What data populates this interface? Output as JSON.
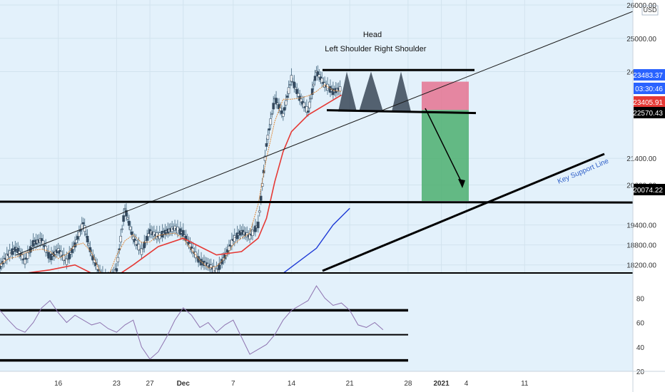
{
  "chart_data": {
    "type": "line",
    "title": "",
    "annotations": {
      "head": "Head",
      "left_shoulder": "Left Shoulder",
      "right_shoulder": "Right Shoulder",
      "support_label": "Key Support Line"
    },
    "y_axis": {
      "currency": "USD",
      "ticks": [
        "26000.00",
        "25000.00",
        "24000.00",
        "21400.00",
        "20600.00",
        "19400.00",
        "18800.00",
        "18200.00"
      ],
      "tick_values": [
        26000,
        25000,
        24000,
        21400,
        20600,
        19400,
        18800,
        18200
      ],
      "ylim": [
        17980,
        26150
      ]
    },
    "price_badges": [
      {
        "value": "23483.37",
        "color": "#2962ff"
      },
      {
        "value": "03:30:46",
        "color": "#2962ff"
      },
      {
        "value": "23405.91",
        "color": "#e53935"
      },
      {
        "value": "22570.43",
        "color": "#000000"
      },
      {
        "value": "20074.22",
        "color": "#000000"
      }
    ],
    "x_axis": {
      "labels": [
        "16",
        "23",
        "27",
        "Dec",
        "7",
        "14",
        "21",
        "28",
        "2021",
        "4",
        "11"
      ],
      "label_days": [
        16,
        23,
        27,
        31,
        37,
        44,
        51,
        58,
        62,
        65,
        72
      ],
      "xlim": [
        9,
        85
      ]
    },
    "rsi": {
      "ticks": [
        "80",
        "60",
        "40",
        "20"
      ],
      "tick_values": [
        80,
        60,
        40,
        20
      ],
      "ylim": [
        20,
        100
      ],
      "levels": [
        70,
        50,
        29
      ],
      "points": [
        [
          9,
          70
        ],
        [
          10,
          62
        ],
        [
          11,
          55
        ],
        [
          12,
          52
        ],
        [
          13,
          60
        ],
        [
          14,
          72
        ],
        [
          15,
          78
        ],
        [
          16,
          68
        ],
        [
          17,
          60
        ],
        [
          18,
          66
        ],
        [
          19,
          62
        ],
        [
          20,
          58
        ],
        [
          21,
          60
        ],
        [
          22,
          55
        ],
        [
          23,
          52
        ],
        [
          24,
          58
        ],
        [
          25,
          62
        ],
        [
          26,
          40
        ],
        [
          27,
          30
        ],
        [
          28,
          36
        ],
        [
          29,
          48
        ],
        [
          30,
          62
        ],
        [
          31,
          72
        ],
        [
          32,
          66
        ],
        [
          33,
          56
        ],
        [
          34,
          60
        ],
        [
          35,
          52
        ],
        [
          36,
          58
        ],
        [
          37,
          62
        ],
        [
          38,
          48
        ],
        [
          39,
          34
        ],
        [
          40,
          38
        ],
        [
          41,
          42
        ],
        [
          42,
          50
        ],
        [
          43,
          62
        ],
        [
          44,
          70
        ],
        [
          45,
          74
        ],
        [
          46,
          78
        ],
        [
          47,
          90
        ],
        [
          48,
          80
        ],
        [
          49,
          74
        ],
        [
          50,
          76
        ],
        [
          51,
          70
        ],
        [
          52,
          58
        ],
        [
          53,
          56
        ],
        [
          54,
          60
        ],
        [
          55,
          54
        ]
      ]
    },
    "series": [
      {
        "name": "",
        "color": "#6f8fa6",
        "points": [
          [
            9,
            18150
          ],
          [
            10,
            18500
          ],
          [
            11,
            18700
          ],
          [
            12,
            18300
          ],
          [
            13,
            18850
          ],
          [
            14,
            18950
          ],
          [
            15,
            18400
          ],
          [
            16,
            18650
          ],
          [
            17,
            18300
          ],
          [
            18,
            18800
          ],
          [
            19,
            19450
          ],
          [
            20,
            18500
          ],
          [
            21,
            17950
          ],
          [
            22,
            17700
          ],
          [
            23,
            18050
          ],
          [
            24,
            19900
          ],
          [
            25,
            19000
          ],
          [
            26,
            18600
          ],
          [
            27,
            19200
          ],
          [
            28,
            19050
          ],
          [
            29,
            19200
          ],
          [
            30,
            19300
          ],
          [
            31,
            19150
          ],
          [
            32,
            18700
          ],
          [
            33,
            18300
          ],
          [
            34,
            18200
          ],
          [
            35,
            18000
          ],
          [
            36,
            18450
          ],
          [
            37,
            18950
          ],
          [
            38,
            19200
          ],
          [
            39,
            19050
          ],
          [
            40,
            19400
          ],
          [
            41,
            21800
          ],
          [
            42,
            23200
          ],
          [
            43,
            22700
          ],
          [
            44,
            23800
          ],
          [
            45,
            23200
          ],
          [
            46,
            22800
          ],
          [
            47,
            24000
          ],
          [
            48,
            23600
          ],
          [
            49,
            23400
          ],
          [
            50,
            23500
          ]
        ]
      },
      {
        "name": "",
        "color": "#e53935",
        "points": [
          [
            9,
            17700
          ],
          [
            12,
            17950
          ],
          [
            15,
            18050
          ],
          [
            18,
            18200
          ],
          [
            20,
            17950
          ],
          [
            22,
            17700
          ],
          [
            25,
            18200
          ],
          [
            28,
            18750
          ],
          [
            31,
            19000
          ],
          [
            33,
            18750
          ],
          [
            35,
            18500
          ],
          [
            38,
            18600
          ],
          [
            40,
            19000
          ],
          [
            41,
            19600
          ],
          [
            42,
            20700
          ],
          [
            43,
            21600
          ],
          [
            44,
            22200
          ],
          [
            46,
            22700
          ],
          [
            48,
            23000
          ],
          [
            50,
            23300
          ]
        ]
      },
      {
        "name": "",
        "color": "#1e3ad6",
        "points": [
          [
            43,
            17950
          ],
          [
            47,
            18700
          ],
          [
            49,
            19400
          ],
          [
            51,
            19900
          ]
        ]
      }
    ],
    "patterns": {
      "neckline": 22800,
      "top_line": 24050,
      "support": 20074.22,
      "trade_box": {
        "entry": 22850,
        "stop": 23700,
        "target": 20120
      }
    }
  }
}
